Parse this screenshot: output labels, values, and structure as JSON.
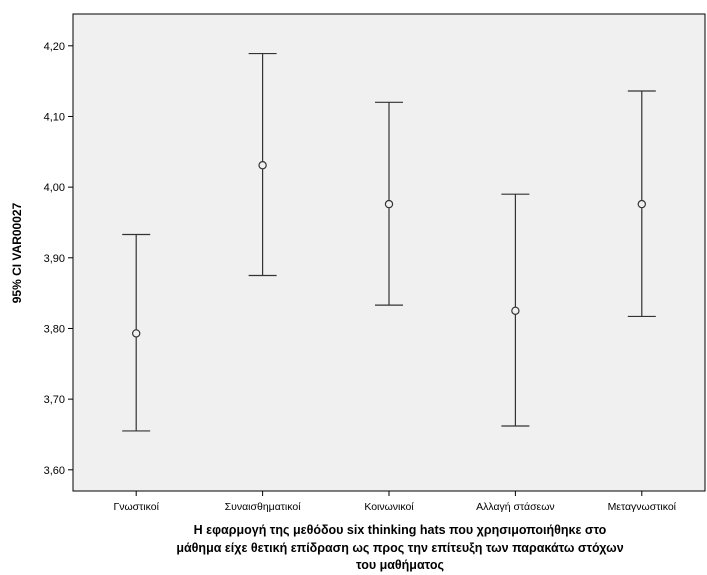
{
  "chart_data": {
    "type": "errorbar",
    "categories": [
      "Γνωστικοί",
      "Συναισθηματικοί",
      "Κοινωνικοί",
      "Αλλαγή στάσεων",
      "Μεταγνωστικοί"
    ],
    "series": [
      {
        "mean": [
          3.793,
          4.031,
          3.976,
          3.825,
          3.976
        ],
        "lower": [
          3.655,
          3.875,
          3.833,
          3.662,
          3.817
        ],
        "upper": [
          3.933,
          4.189,
          4.12,
          3.99,
          4.136
        ]
      }
    ],
    "ylabel": "95% CI VAR00027",
    "xlabel_lines": [
      "Η εφαρμογή της μεθόδου six thinking hats που χρησιμοποιήθηκε στο",
      "μάθημα είχε θετική επίδραση ως προς την επίτευξη των παρακάτω στόχων",
      "του μαθήματος"
    ],
    "ylim": [
      3.57,
      4.245
    ],
    "yticks": [
      3.6,
      3.7,
      3.8,
      3.9,
      4.0,
      4.1,
      4.2
    ],
    "ytick_labels": [
      "3,60",
      "3,70",
      "3,80",
      "3,90",
      "4,00",
      "4,10",
      "4,20"
    ],
    "grid": false,
    "colors": {
      "plot_background": "#f0f0f0",
      "marks": "#333333"
    }
  }
}
